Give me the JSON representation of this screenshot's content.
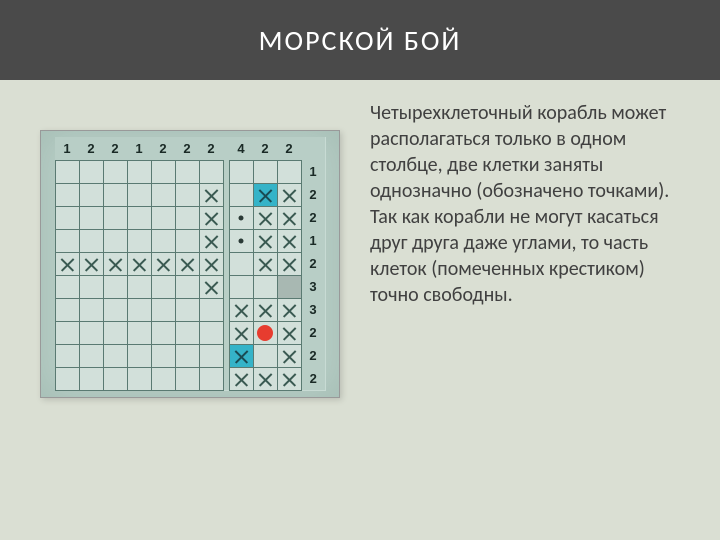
{
  "title": "МОРСКОЙ БОЙ",
  "body_text": "Четырехклеточный корабль может располагаться только в одном столбце, две клетки заняты однозначно (обозначено точками). Так как корабли не могут касаться друг друга даже углами, то часть клеток (помеченных крестиком) точно свободны.",
  "grid": {
    "type": "battleship-grid",
    "rows": 10,
    "left_cols": 7,
    "right_cols": 3,
    "background_color": "#b8cec6",
    "cell_color": "#d2e0da",
    "line_color": "#5a7a72",
    "ship_color": "#35b3c8",
    "red_marker_color": "#e73c2f",
    "col_headers_left": [
      "1",
      "2",
      "2",
      "1",
      "2",
      "2",
      "2"
    ],
    "col_headers_right": [
      "4",
      "2",
      "2"
    ],
    "row_headers": [
      "1",
      "2",
      "2",
      "1",
      "2",
      "3",
      "3",
      "2",
      "2",
      "2"
    ],
    "ship_cells": [
      [
        2,
        9
      ],
      [
        9,
        8
      ]
    ],
    "red_cells": [
      [
        8,
        9
      ]
    ],
    "gray_cells": [
      [
        6,
        10
      ]
    ],
    "dot_cells": [
      [
        3,
        8
      ],
      [
        4,
        8
      ]
    ],
    "x_cells": [
      [
        2,
        7
      ],
      [
        2,
        9
      ],
      [
        2,
        10
      ],
      [
        3,
        7
      ],
      [
        3,
        9
      ],
      [
        3,
        10
      ],
      [
        4,
        7
      ],
      [
        4,
        9
      ],
      [
        4,
        10
      ],
      [
        5,
        1
      ],
      [
        5,
        2
      ],
      [
        5,
        3
      ],
      [
        5,
        4
      ],
      [
        5,
        5
      ],
      [
        5,
        6
      ],
      [
        5,
        7
      ],
      [
        5,
        9
      ],
      [
        5,
        10
      ],
      [
        6,
        7
      ],
      [
        7,
        8
      ],
      [
        7,
        9
      ],
      [
        7,
        10
      ],
      [
        8,
        8
      ],
      [
        8,
        10
      ],
      [
        9,
        8
      ],
      [
        9,
        10
      ],
      [
        10,
        8
      ],
      [
        10,
        9
      ],
      [
        10,
        10
      ]
    ]
  }
}
